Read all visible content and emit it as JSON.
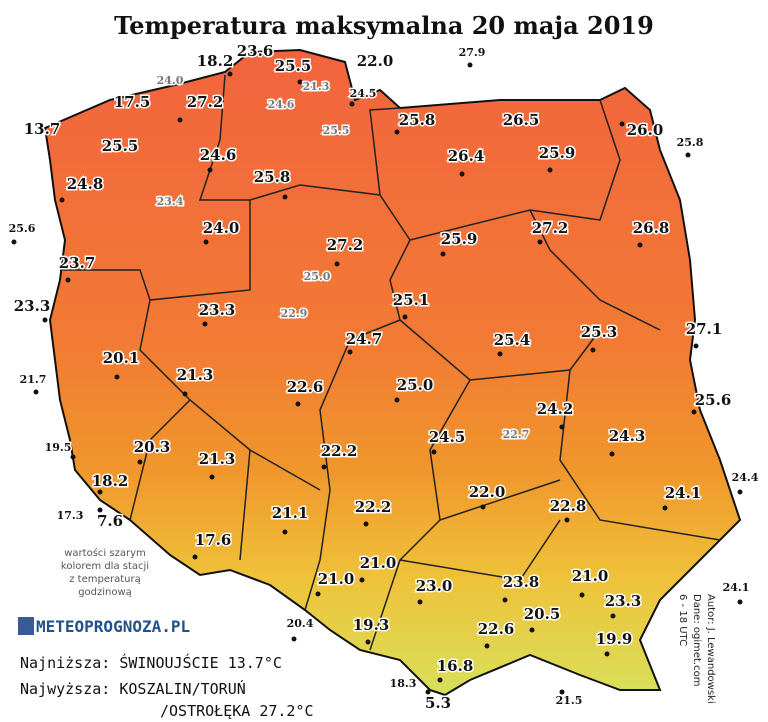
{
  "title": "Temperatura maksymalna 20 maja 2019",
  "stations": [
    "18.2",
    "23.6",
    "25.5",
    "22.0",
    "27.9",
    "17.5",
    "27.2",
    "24.5",
    "13.7",
    "25.8",
    "26.5",
    "26.0",
    "25.8",
    "25.5",
    "24.6",
    "26.4",
    "25.9",
    "24.8",
    "25.8",
    "25.6",
    "24.0",
    "27.2",
    "25.9",
    "27.2",
    "26.8",
    "23.7",
    "23.3",
    "23.3",
    "25.1",
    "24.7",
    "25.4",
    "25.3",
    "27.1",
    "20.1",
    "21.7",
    "21.3",
    "22.6",
    "25.0",
    "25.6",
    "24.2",
    "19.5",
    "20.3",
    "21.3",
    "22.2",
    "24.5",
    "24.3",
    "24.4",
    "18.2",
    "17.3",
    "7.6",
    "22.0",
    "24.1",
    "21.1",
    "22.2",
    "22.8",
    "17.6",
    "21.0",
    "21.0",
    "23.0",
    "23.8",
    "21.0",
    "24.1",
    "20.5",
    "23.3",
    "20.4",
    "19.3",
    "22.6",
    "19.9",
    "16.8",
    "18.3",
    "5.3",
    "21.5"
  ],
  "hourly_stations": [
    "24.0",
    "21.3",
    "24.6",
    "25.5",
    "23.4",
    "25.0",
    "22.9",
    "22.7"
  ],
  "note": [
    "wartości szarym",
    "kolorem dla stacji",
    "z temperaturą",
    "godzinową"
  ],
  "logo": "METEOPROGNOZA.PL",
  "extremes": [
    "Najniższa: ŚWINOUJŚCIE 13.7°C",
    "Najwyższa: KOSZALIN/TORUŃ",
    "/OSTROŁĘKA 27.2°C"
  ],
  "credits": [
    "Autor: J. Lewandowski",
    "Dane: ogimet.com",
    "6 - 18 UTC"
  ]
}
